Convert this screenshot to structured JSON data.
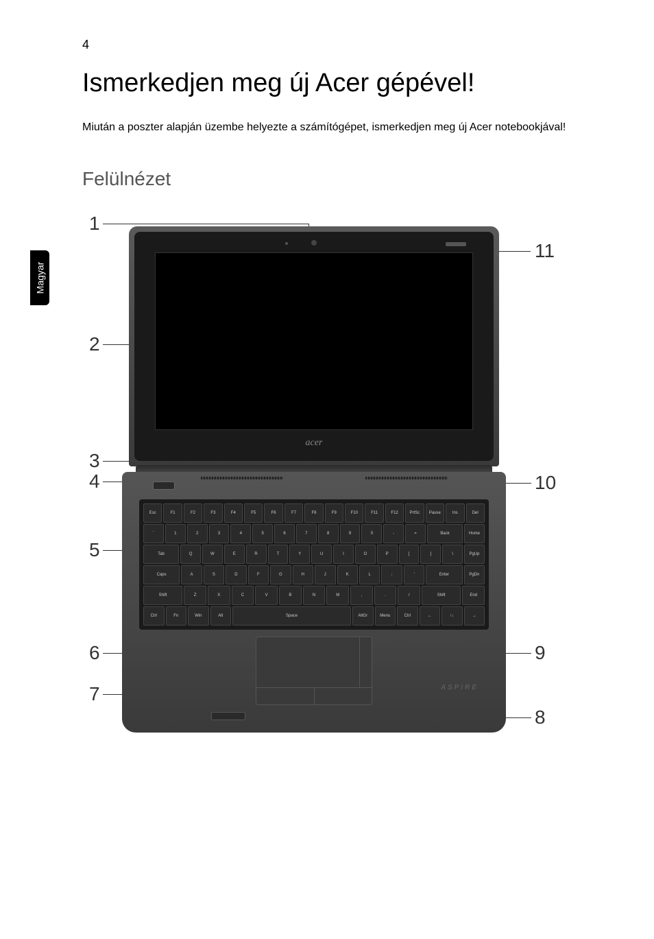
{
  "page_number": "4",
  "title": "Ismerkedjen meg új Acer gépével!",
  "intro": "Miután a poszter alapján üzembe helyezte a számítógépet, ismerkedjen meg új Acer notebookjával!",
  "subtitle": "Felülnézet",
  "side_tab": "Magyar",
  "screen_logo": "acer",
  "palmrest_brand": "ASPIRE",
  "callouts": {
    "c1": "1",
    "c2": "2",
    "c3": "3",
    "c4": "4",
    "c5": "5",
    "c6": "6",
    "c7": "7",
    "c8": "8",
    "c9": "9",
    "c10": "10",
    "c11": "11"
  },
  "keyboard_rows": [
    [
      "Esc",
      "F1",
      "F2",
      "F3",
      "F4",
      "F5",
      "F6",
      "F7",
      "F8",
      "F9",
      "F10",
      "F11",
      "F12",
      "PrtSc",
      "Pause",
      "Ins",
      "Del"
    ],
    [
      "`",
      "1",
      "2",
      "3",
      "4",
      "5",
      "6",
      "7",
      "8",
      "9",
      "0",
      "-",
      "=",
      "Back",
      "Home"
    ],
    [
      "Tab",
      "Q",
      "W",
      "E",
      "R",
      "T",
      "Y",
      "U",
      "I",
      "O",
      "P",
      "[",
      "]",
      "\\",
      "PgUp"
    ],
    [
      "Caps",
      "A",
      "S",
      "D",
      "F",
      "G",
      "H",
      "J",
      "K",
      "L",
      ";",
      "'",
      "Enter",
      "PgDn"
    ],
    [
      "Shift",
      "Z",
      "X",
      "C",
      "V",
      "B",
      "N",
      "M",
      ",",
      ".",
      "/",
      "Shift",
      "End"
    ],
    [
      "Ctrl",
      "Fn",
      "Win",
      "Alt",
      "Space",
      "AltGr",
      "Menu",
      "Ctrl",
      "←",
      "↑↓",
      "→"
    ]
  ],
  "colors": {
    "text": "#000000",
    "subtitle": "#555555",
    "callout": "#333333",
    "laptop_dark": "#1a1a1a",
    "laptop_mid": "#3a3a3a",
    "key_bg": "#2a2a2a"
  }
}
